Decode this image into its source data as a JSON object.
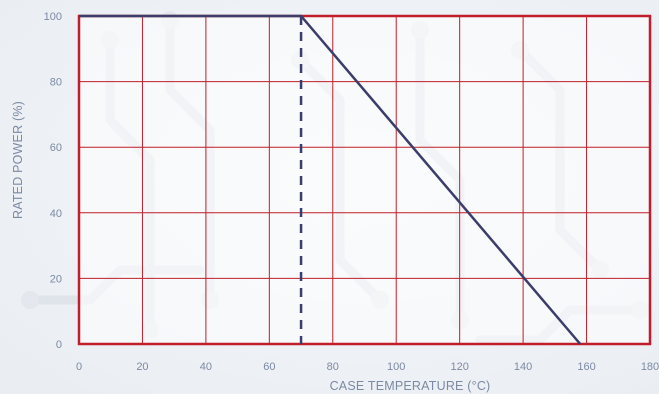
{
  "chart_data": {
    "type": "line",
    "xlabel": "CASE TEMPERATURE (°C)",
    "ylabel": "RATED POWER (%)",
    "xlim": [
      0,
      180
    ],
    "ylim": [
      0,
      100
    ],
    "x_ticks": [
      0,
      20,
      40,
      60,
      80,
      100,
      120,
      140,
      160,
      180
    ],
    "y_ticks": [
      0,
      20,
      40,
      60,
      80,
      100
    ],
    "grid": true,
    "series": [
      {
        "x": [
          0,
          70,
          158
        ],
        "y": [
          100,
          100,
          0
        ]
      }
    ],
    "reference_line": {
      "x": 70,
      "style": "dashed"
    },
    "colors": {
      "grid": "#c01e2a",
      "frame": "#c01e2a",
      "line": "#3b3d6a",
      "background": "#ffffff",
      "text": "#7b8aa3"
    }
  }
}
